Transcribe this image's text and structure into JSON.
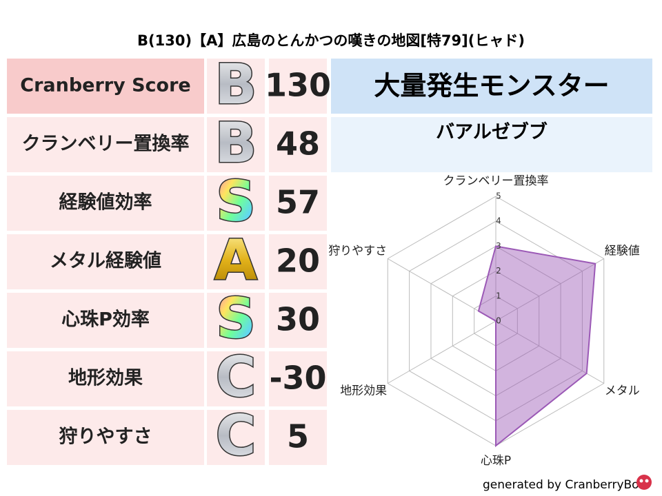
{
  "title": "B(130)【A】広島のとんかつの嘆きの地図[特79](ヒャド)",
  "score_table": {
    "rows": [
      {
        "label": "Cranberry Score",
        "grade": "B",
        "value": 130
      },
      {
        "label": "クランベリー置換率",
        "grade": "B",
        "value": 48
      },
      {
        "label": "経験値効率",
        "grade": "S",
        "value": 57
      },
      {
        "label": "メタル経験値",
        "grade": "A",
        "value": 20
      },
      {
        "label": "心珠P効率",
        "grade": "S",
        "value": 30
      },
      {
        "label": "地形効果",
        "grade": "C",
        "value": -30
      },
      {
        "label": "狩りやすさ",
        "grade": "C",
        "value": 5
      }
    ]
  },
  "monster_panel": {
    "header": "大量発生モンスター",
    "names": "バアルゼブブ"
  },
  "chart_data": {
    "type": "radar",
    "categories": [
      "クランベリー置換率",
      "経験値",
      "メタル",
      "心珠P",
      "地形効果",
      "狩りやすさ"
    ],
    "values": [
      3,
      4.6,
      4.2,
      5,
      0,
      0.8
    ],
    "rlim": [
      0,
      5
    ],
    "rticks": [
      0,
      1,
      2,
      3,
      4,
      5
    ],
    "color": "#9b59b6"
  },
  "footer": "generated by CranberryBot"
}
